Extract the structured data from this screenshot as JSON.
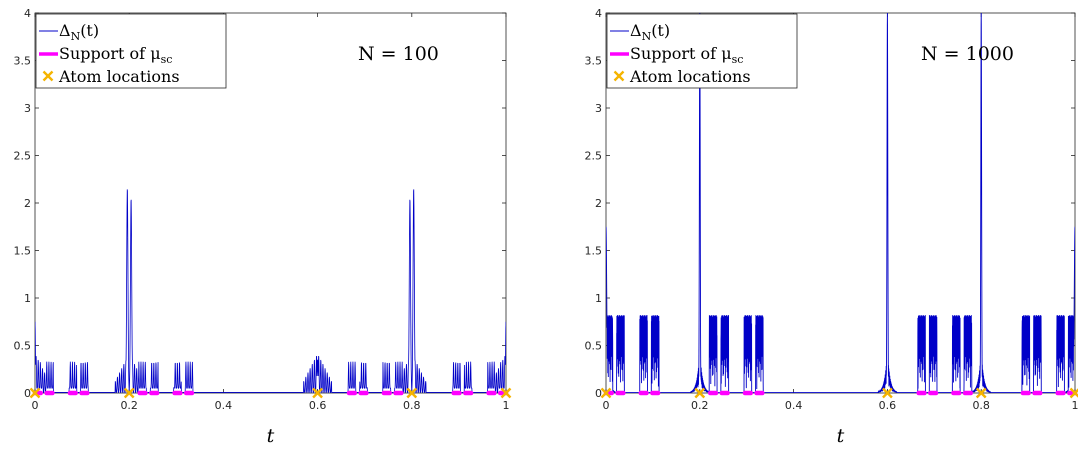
{
  "colors": {
    "curve": "#0000c8",
    "support": "#ff00ff",
    "atoms": "#f5b400",
    "axes": "#262626"
  },
  "chart_data": [
    {
      "type": "line",
      "annotation": "N = 100",
      "N": 100,
      "xlabel": "t",
      "xlim": [
        0,
        1
      ],
      "ylim": [
        0,
        4
      ],
      "x_ticks": [
        "0",
        "0.2",
        "0.4",
        "0.6",
        "0.8",
        "1"
      ],
      "y_ticks": [
        "0",
        "0.5",
        "1",
        "1.5",
        "2",
        "2.5",
        "3",
        "3.5",
        "4"
      ],
      "legend": {
        "position": "top-left",
        "entries": [
          "Δ_N(t)",
          "Support of μ_sc",
          "Atom locations"
        ]
      },
      "atoms": [
        0,
        0.2,
        0.6,
        0.8,
        1
      ],
      "support_intervals": [
        [
          0,
          0.0123
        ],
        [
          0.0247,
          0.037
        ],
        [
          0.0741,
          0.0864
        ],
        [
          0.0988,
          0.1111
        ],
        [
          0.2222,
          0.2346
        ],
        [
          0.2469,
          0.2593
        ],
        [
          0.2963,
          0.3086
        ],
        [
          0.321,
          0.3333
        ],
        [
          0.6667,
          0.679
        ],
        [
          0.6914,
          0.7037
        ],
        [
          0.7407,
          0.7531
        ],
        [
          0.7654,
          0.7778
        ],
        [
          0.8889,
          0.9012
        ],
        [
          0.9136,
          0.9259
        ],
        [
          0.963,
          0.9753
        ],
        [
          0.9877,
          1
        ]
      ],
      "peaks": [
        {
          "x": 0.0,
          "value": 0.75
        },
        {
          "x": 1.0,
          "value": 0.75
        },
        {
          "x": 0.196,
          "value": 2.16
        },
        {
          "x": 0.204,
          "value": 2.05
        },
        {
          "x": 0.796,
          "value": 2.05
        },
        {
          "x": 0.804,
          "value": 2.16
        },
        {
          "x": 0.6,
          "value": 0.35
        }
      ]
    },
    {
      "type": "line",
      "annotation": "N = 1000",
      "N": 1000,
      "xlabel": "t",
      "xlim": [
        0,
        1
      ],
      "ylim": [
        0,
        4
      ],
      "x_ticks": [
        "0",
        "0.2",
        "0.4",
        "0.6",
        "0.8",
        "1"
      ],
      "y_ticks": [
        "0",
        "0.5",
        "1",
        "1.5",
        "2",
        "2.5",
        "3",
        "3.5",
        "4"
      ],
      "legend": {
        "position": "top-left",
        "entries": [
          "Δ_N(t)",
          "Support of μ_sc",
          "Atom locations"
        ]
      },
      "atoms": [
        0,
        0.2,
        0.6,
        0.8,
        1
      ],
      "support_intervals": [
        [
          0,
          0.0123
        ],
        [
          0.0247,
          0.037
        ],
        [
          0.0741,
          0.0864
        ],
        [
          0.0988,
          0.1111
        ],
        [
          0.2222,
          0.2346
        ],
        [
          0.2469,
          0.2593
        ],
        [
          0.2963,
          0.3086
        ],
        [
          0.321,
          0.3333
        ],
        [
          0.6667,
          0.679
        ],
        [
          0.6914,
          0.7037
        ],
        [
          0.7407,
          0.7531
        ],
        [
          0.7654,
          0.7778
        ],
        [
          0.8889,
          0.9012
        ],
        [
          0.9136,
          0.9259
        ],
        [
          0.963,
          0.9753
        ],
        [
          0.9877,
          1
        ]
      ],
      "peaks": [
        {
          "x": 0.2,
          "value": 4.0
        },
        {
          "x": 0.6,
          "value": 4.0
        },
        {
          "x": 0.8,
          "value": 4.0
        },
        {
          "x": 0.0,
          "value": 1.75
        },
        {
          "x": 1.0,
          "value": 1.75
        }
      ]
    }
  ]
}
